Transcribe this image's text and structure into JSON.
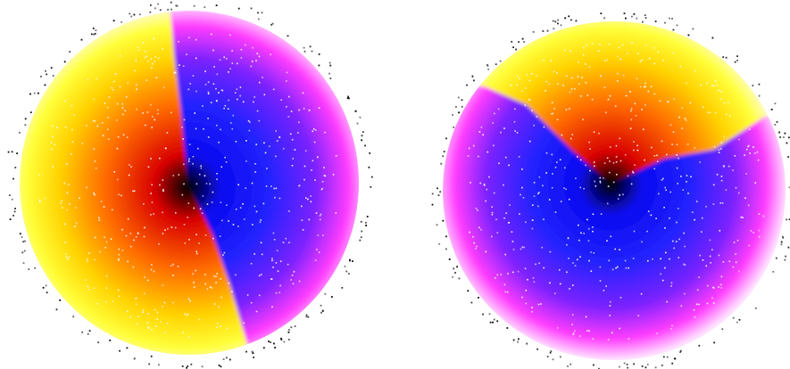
{
  "figure": {
    "background": "#ffffff",
    "panels": [
      {
        "id": "left",
        "region_a": {
          "colormap": "warm",
          "stops": [
            "#000000",
            "#d80000",
            "#ff6a00",
            "#ffd200",
            "#ffff3a",
            "#fffbe6"
          ]
        },
        "region_b": {
          "colormap": "cool",
          "stops": [
            "#000000",
            "#0a0af0",
            "#2222ff",
            "#7a22ff",
            "#ff3cff",
            "#ffe6ff"
          ]
        },
        "speckle_color": "#ffffff",
        "rim_dot_color": "#000000"
      },
      {
        "id": "right",
        "region_a": {
          "colormap": "warm",
          "stops": [
            "#000000",
            "#d80000",
            "#ff6a00",
            "#ffd200",
            "#ffff3a",
            "#fffbe6"
          ]
        },
        "region_b": {
          "colormap": "cool",
          "stops": [
            "#000000",
            "#0a0af0",
            "#2222ff",
            "#7a22ff",
            "#ff3cff",
            "#ffe6ff"
          ]
        },
        "speckle_color": "#ffffff",
        "rim_dot_color": "#000000"
      }
    ]
  }
}
